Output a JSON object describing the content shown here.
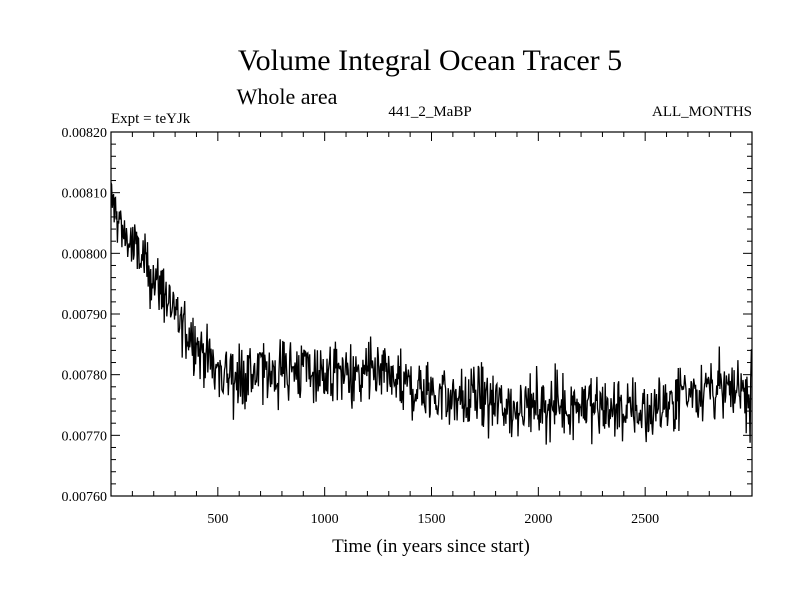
{
  "chart_data": {
    "type": "line",
    "title": "Volume Integral Ocean Tracer 5",
    "subtitle": "Whole area",
    "experiment_label": "Expt = teYJk",
    "run_label": "441_2_MaBP",
    "months_label": "ALL_MONTHS",
    "xlabel": "Time (in years since start)",
    "ylabel": "",
    "xlim": [
      0,
      3000
    ],
    "ylim": [
      0.0076,
      0.0082
    ],
    "x_ticks": [
      500,
      1000,
      1500,
      2000,
      2500
    ],
    "x_tick_labels": [
      "500",
      "1000",
      "1500",
      "2000",
      "2500"
    ],
    "y_ticks": [
      0.0076,
      0.0077,
      0.0078,
      0.0079,
      0.008,
      0.0081,
      0.0082
    ],
    "y_tick_labels": [
      "0.00760",
      "0.00770",
      "0.00780",
      "0.00790",
      "0.00800",
      "0.00810",
      "0.00820"
    ],
    "grid": false,
    "series": [
      {
        "name": "Volume Integral Ocean Tracer 5",
        "color": "#000000",
        "x": [
          0,
          50,
          100,
          200,
          300,
          400,
          500,
          600,
          700,
          800,
          900,
          1000,
          1100,
          1200,
          1300,
          1400,
          1500,
          1600,
          1700,
          1800,
          1900,
          2000,
          2100,
          2200,
          2300,
          2400,
          2500,
          2600,
          2700,
          2800,
          2900,
          3000
        ],
        "values": [
          0.00809,
          0.00804,
          0.00801,
          0.00796,
          0.0079,
          0.00785,
          0.00781,
          0.0078,
          0.0078,
          0.00781,
          0.00781,
          0.0078,
          0.0078,
          0.0078,
          0.00779,
          0.00778,
          0.00777,
          0.00776,
          0.00776,
          0.00775,
          0.00775,
          0.00775,
          0.00775,
          0.00775,
          0.00775,
          0.00774,
          0.00774,
          0.00775,
          0.00777,
          0.00778,
          0.00777,
          0.00777
        ]
      }
    ]
  }
}
